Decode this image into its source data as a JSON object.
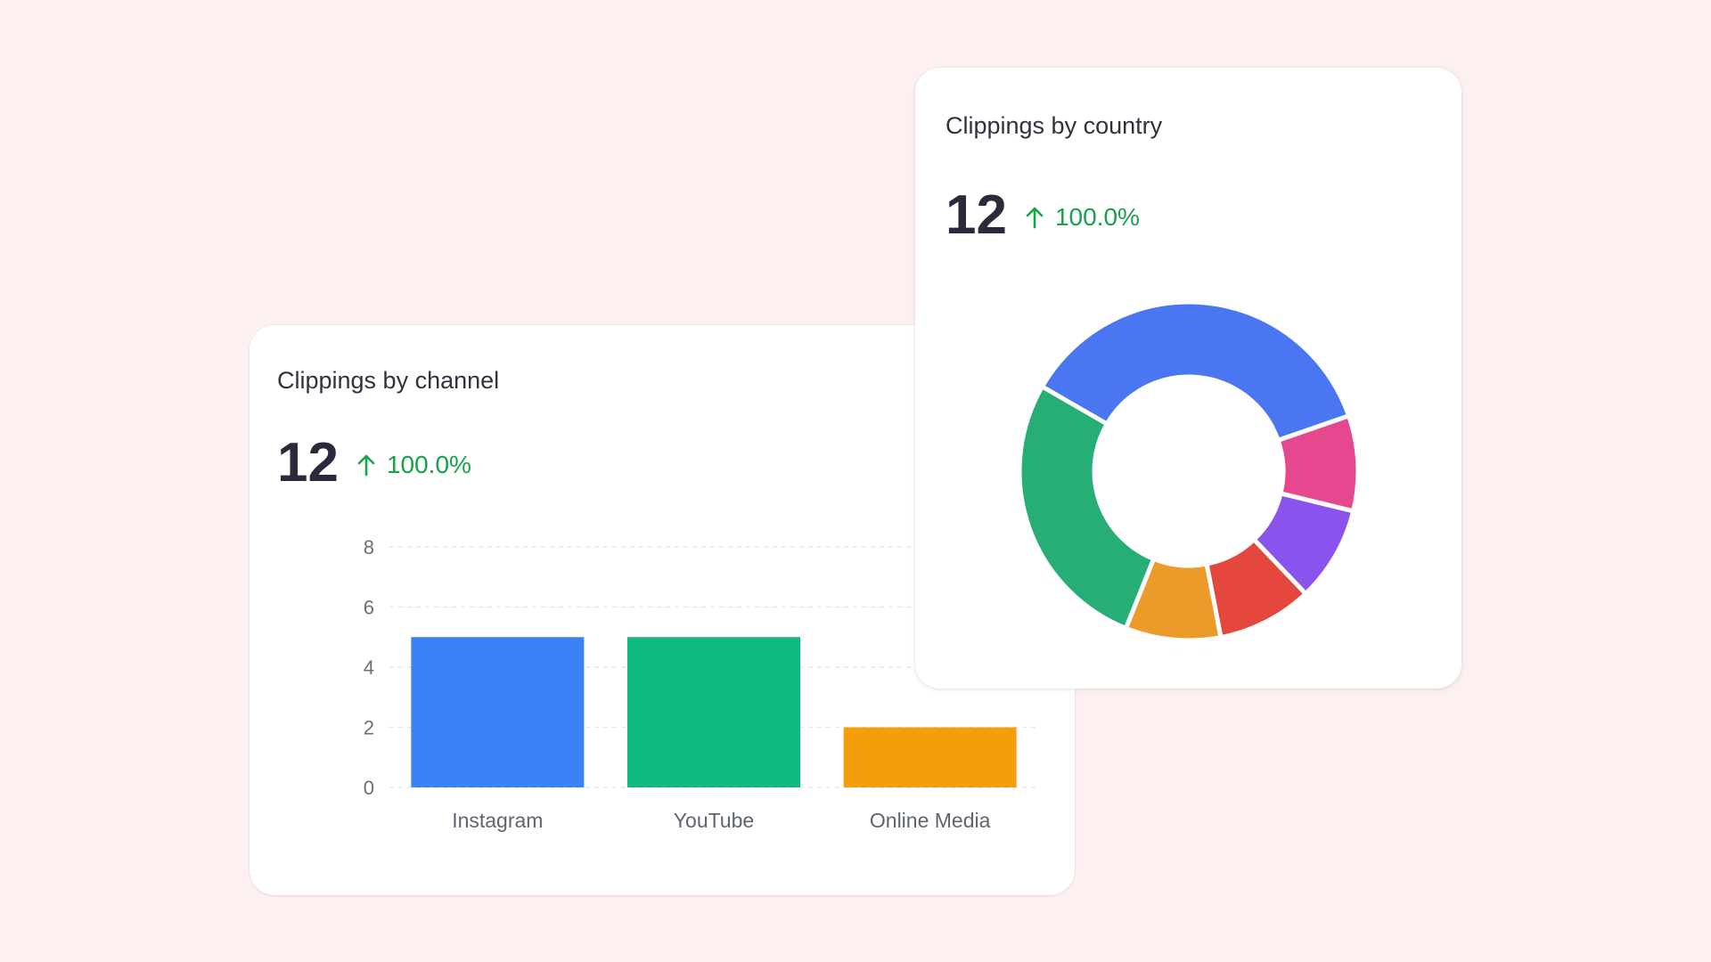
{
  "colors": {
    "background": "#fdf0f1",
    "positive": "#16a34a"
  },
  "channel_card": {
    "title": "Clippings by channel",
    "value": "12",
    "change": "100.0%",
    "change_icon": "arrow-up-icon"
  },
  "country_card": {
    "title": "Clippings by country",
    "value": "12",
    "change": "100.0%",
    "change_icon": "arrow-up-icon"
  },
  "chart_data": [
    {
      "type": "bar",
      "title": "Clippings by channel",
      "categories": [
        "Instagram",
        "YouTube",
        "Online Media"
      ],
      "values": [
        5,
        5,
        2
      ],
      "colors": [
        "#3b82f6",
        "#10b981",
        "#f59e0b"
      ],
      "yticks": [
        "0",
        "2",
        "4",
        "6",
        "8"
      ],
      "ylim": [
        0,
        8
      ],
      "grid": true
    },
    {
      "type": "pie",
      "donut": true,
      "title": "Clippings by country",
      "values": [
        4,
        1,
        1,
        1,
        1,
        3
      ],
      "colors": [
        "#4a76f1",
        "#e5488f",
        "#8b53ee",
        "#e5473f",
        "#ec9a2a",
        "#27ae77"
      ]
    }
  ]
}
